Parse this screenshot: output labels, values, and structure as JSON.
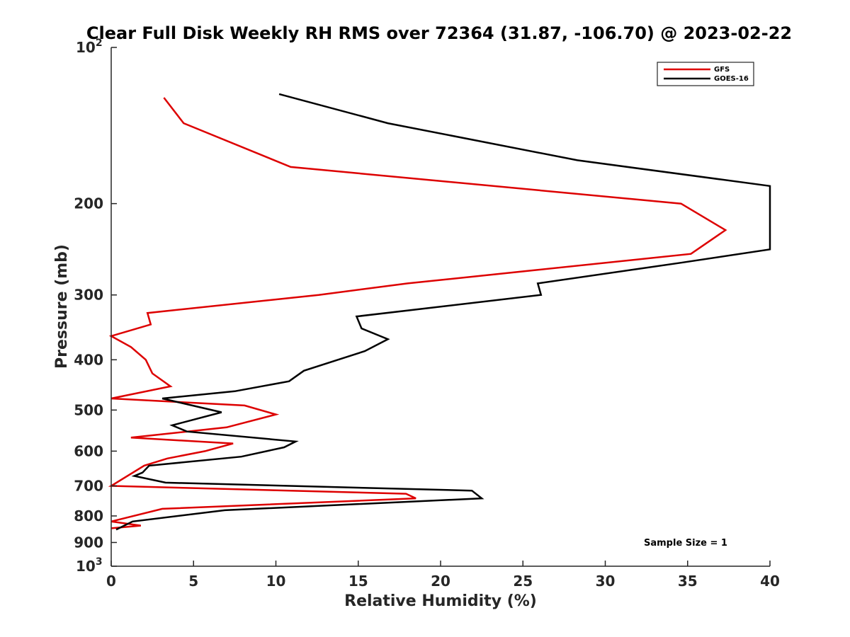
{
  "chart_data": {
    "type": "line",
    "title": "Clear Full Disk Weekly RH RMS over 72364 (31.87, -106.70) @ 2023-02-22",
    "xlabel": "Relative Humidity (%)",
    "ylabel": "Pressure (mb)",
    "xlim": [
      0,
      40
    ],
    "ylim": [
      100,
      1000
    ],
    "y_scale": "log",
    "y_reversed": true,
    "grid": false,
    "legend_position": "top-right",
    "x_ticks": [
      "0",
      "5",
      "10",
      "15",
      "20",
      "25",
      "30",
      "35",
      "40"
    ],
    "y_ticks": [
      {
        "value": 100,
        "label": "10",
        "sup": "2"
      },
      {
        "value": 200,
        "label": "200",
        "sup": ""
      },
      {
        "value": 300,
        "label": "300",
        "sup": ""
      },
      {
        "value": 400,
        "label": "400",
        "sup": ""
      },
      {
        "value": 500,
        "label": "500",
        "sup": ""
      },
      {
        "value": 600,
        "label": "600",
        "sup": ""
      },
      {
        "value": 700,
        "label": "700",
        "sup": ""
      },
      {
        "value": 800,
        "label": "800",
        "sup": ""
      },
      {
        "value": 900,
        "label": "900",
        "sup": ""
      },
      {
        "value": 1000,
        "label": "10",
        "sup": "3"
      }
    ],
    "series": [
      {
        "name": "GFS",
        "color": "#dd0000",
        "points": [
          [
            3.2,
            125
          ],
          [
            4.4,
            140
          ],
          [
            10.9,
            170
          ],
          [
            34.6,
            200
          ],
          [
            37.3,
            225
          ],
          [
            35.2,
            250
          ],
          [
            18.0,
            285
          ],
          [
            12.6,
            300
          ],
          [
            2.2,
            325
          ],
          [
            2.4,
            342
          ],
          [
            0.0,
            360
          ],
          [
            1.2,
            378
          ],
          [
            2.1,
            400
          ],
          [
            2.5,
            425
          ],
          [
            3.6,
            450
          ],
          [
            0.0,
            475
          ],
          [
            8.1,
            490
          ],
          [
            10.0,
            510
          ],
          [
            7.0,
            540
          ],
          [
            1.2,
            565
          ],
          [
            7.4,
            580
          ],
          [
            5.7,
            600
          ],
          [
            3.4,
            620
          ],
          [
            2.0,
            640
          ],
          [
            0.0,
            700
          ],
          [
            17.9,
            725
          ],
          [
            18.5,
            740
          ],
          [
            3.1,
            775
          ],
          [
            0.0,
            820
          ],
          [
            1.8,
            835
          ],
          [
            0.0,
            845
          ]
        ]
      },
      {
        "name": "GOES-16",
        "color": "#000000",
        "points": [
          [
            10.2,
            123
          ],
          [
            16.8,
            140
          ],
          [
            28.3,
            165
          ],
          [
            40.0,
            185
          ],
          [
            40.0,
            245
          ],
          [
            34.6,
            260
          ],
          [
            25.9,
            285
          ],
          [
            26.1,
            300
          ],
          [
            14.9,
            330
          ],
          [
            15.2,
            348
          ],
          [
            16.8,
            365
          ],
          [
            15.4,
            385
          ],
          [
            11.7,
            420
          ],
          [
            10.8,
            440
          ],
          [
            7.5,
            460
          ],
          [
            3.1,
            475
          ],
          [
            6.7,
            505
          ],
          [
            3.7,
            535
          ],
          [
            4.6,
            550
          ],
          [
            11.2,
            575
          ],
          [
            10.5,
            590
          ],
          [
            7.9,
            615
          ],
          [
            2.3,
            640
          ],
          [
            1.9,
            660
          ],
          [
            1.4,
            670
          ],
          [
            3.3,
            690
          ],
          [
            21.9,
            715
          ],
          [
            22.5,
            740
          ],
          [
            6.9,
            780
          ],
          [
            1.3,
            820
          ],
          [
            0.3,
            850
          ]
        ]
      }
    ],
    "annotation": "Sample Size = 1"
  }
}
